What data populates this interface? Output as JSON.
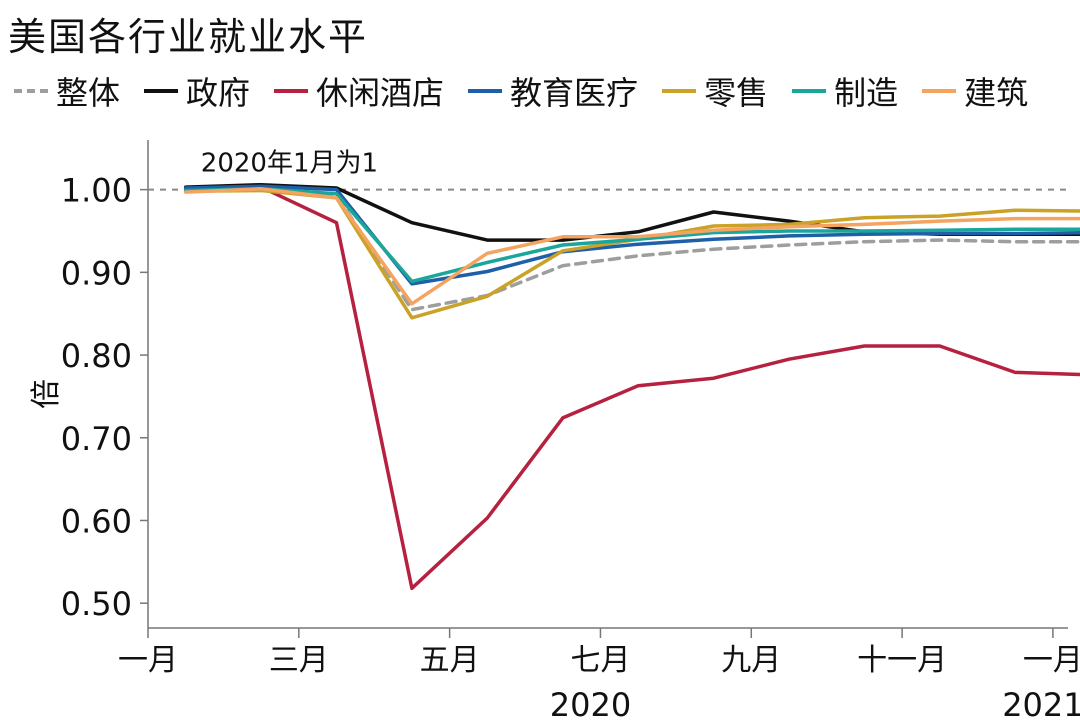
{
  "chart_data": {
    "type": "line",
    "title": "美国各行业就业水平",
    "ylabel": "倍",
    "xlabel": "",
    "annotation": "2020年1月为1",
    "ylim": [
      0.47,
      1.06
    ],
    "y_ticks": [
      0.5,
      0.6,
      0.7,
      0.8,
      0.9,
      1.0
    ],
    "y_tick_labels": [
      "0.50",
      "0.60",
      "0.70",
      "0.80",
      "0.90",
      "1.00"
    ],
    "reference_line": 1.0,
    "x_range": [
      0,
      12.2
    ],
    "x_ticks": [
      {
        "pos": 0,
        "label": "一月"
      },
      {
        "pos": 2,
        "label": "三月"
      },
      {
        "pos": 4,
        "label": "五月"
      },
      {
        "pos": 6,
        "label": "七月"
      },
      {
        "pos": 8,
        "label": "九月"
      },
      {
        "pos": 10,
        "label": "十一月"
      },
      {
        "pos": 12,
        "label": "一月"
      }
    ],
    "year_labels": [
      {
        "pos": 6,
        "label": "2020"
      },
      {
        "pos": 12,
        "label": "2021"
      }
    ],
    "x": [
      0.5,
      1.5,
      2.5,
      3.5,
      4.5,
      5.5,
      6.5,
      7.5,
      8.5,
      9.5,
      10.5,
      11.5,
      12.5
    ],
    "series": [
      {
        "name": "整体",
        "color": "#9e9e9e",
        "dashed": true,
        "values": [
          1.0,
          1.003,
          0.993,
          0.855,
          0.872,
          0.908,
          0.92,
          0.928,
          0.933,
          0.937,
          0.939,
          0.937,
          0.937
        ]
      },
      {
        "name": "政府",
        "color": "#111111",
        "dashed": false,
        "values": [
          1.003,
          1.006,
          1.002,
          0.96,
          0.939,
          0.939,
          0.949,
          0.973,
          0.962,
          0.949,
          0.946,
          0.946,
          0.946
        ]
      },
      {
        "name": "休闲酒店",
        "color": "#b5213f",
        "dashed": false,
        "values": [
          1.0,
          1.003,
          0.96,
          0.518,
          0.603,
          0.724,
          0.763,
          0.772,
          0.795,
          0.811,
          0.811,
          0.779,
          0.776
        ]
      },
      {
        "name": "教育医疗",
        "color": "#1f5fa8",
        "dashed": false,
        "values": [
          1.002,
          1.004,
          1.0,
          0.886,
          0.901,
          0.925,
          0.934,
          0.94,
          0.944,
          0.946,
          0.947,
          0.947,
          0.948
        ]
      },
      {
        "name": "零售",
        "color": "#c9a227",
        "dashed": false,
        "values": [
          0.998,
          0.999,
          0.99,
          0.845,
          0.871,
          0.926,
          0.94,
          0.956,
          0.958,
          0.966,
          0.968,
          0.975,
          0.974
        ]
      },
      {
        "name": "制造",
        "color": "#1aa69a",
        "dashed": false,
        "values": [
          0.999,
          1.001,
          0.995,
          0.889,
          0.912,
          0.933,
          0.94,
          0.948,
          0.95,
          0.95,
          0.951,
          0.952,
          0.952
        ]
      },
      {
        "name": "建筑",
        "color": "#f4a460",
        "dashed": false,
        "values": [
          0.997,
          1.001,
          0.99,
          0.862,
          0.923,
          0.943,
          0.943,
          0.951,
          0.955,
          0.958,
          0.962,
          0.965,
          0.965
        ]
      }
    ]
  }
}
